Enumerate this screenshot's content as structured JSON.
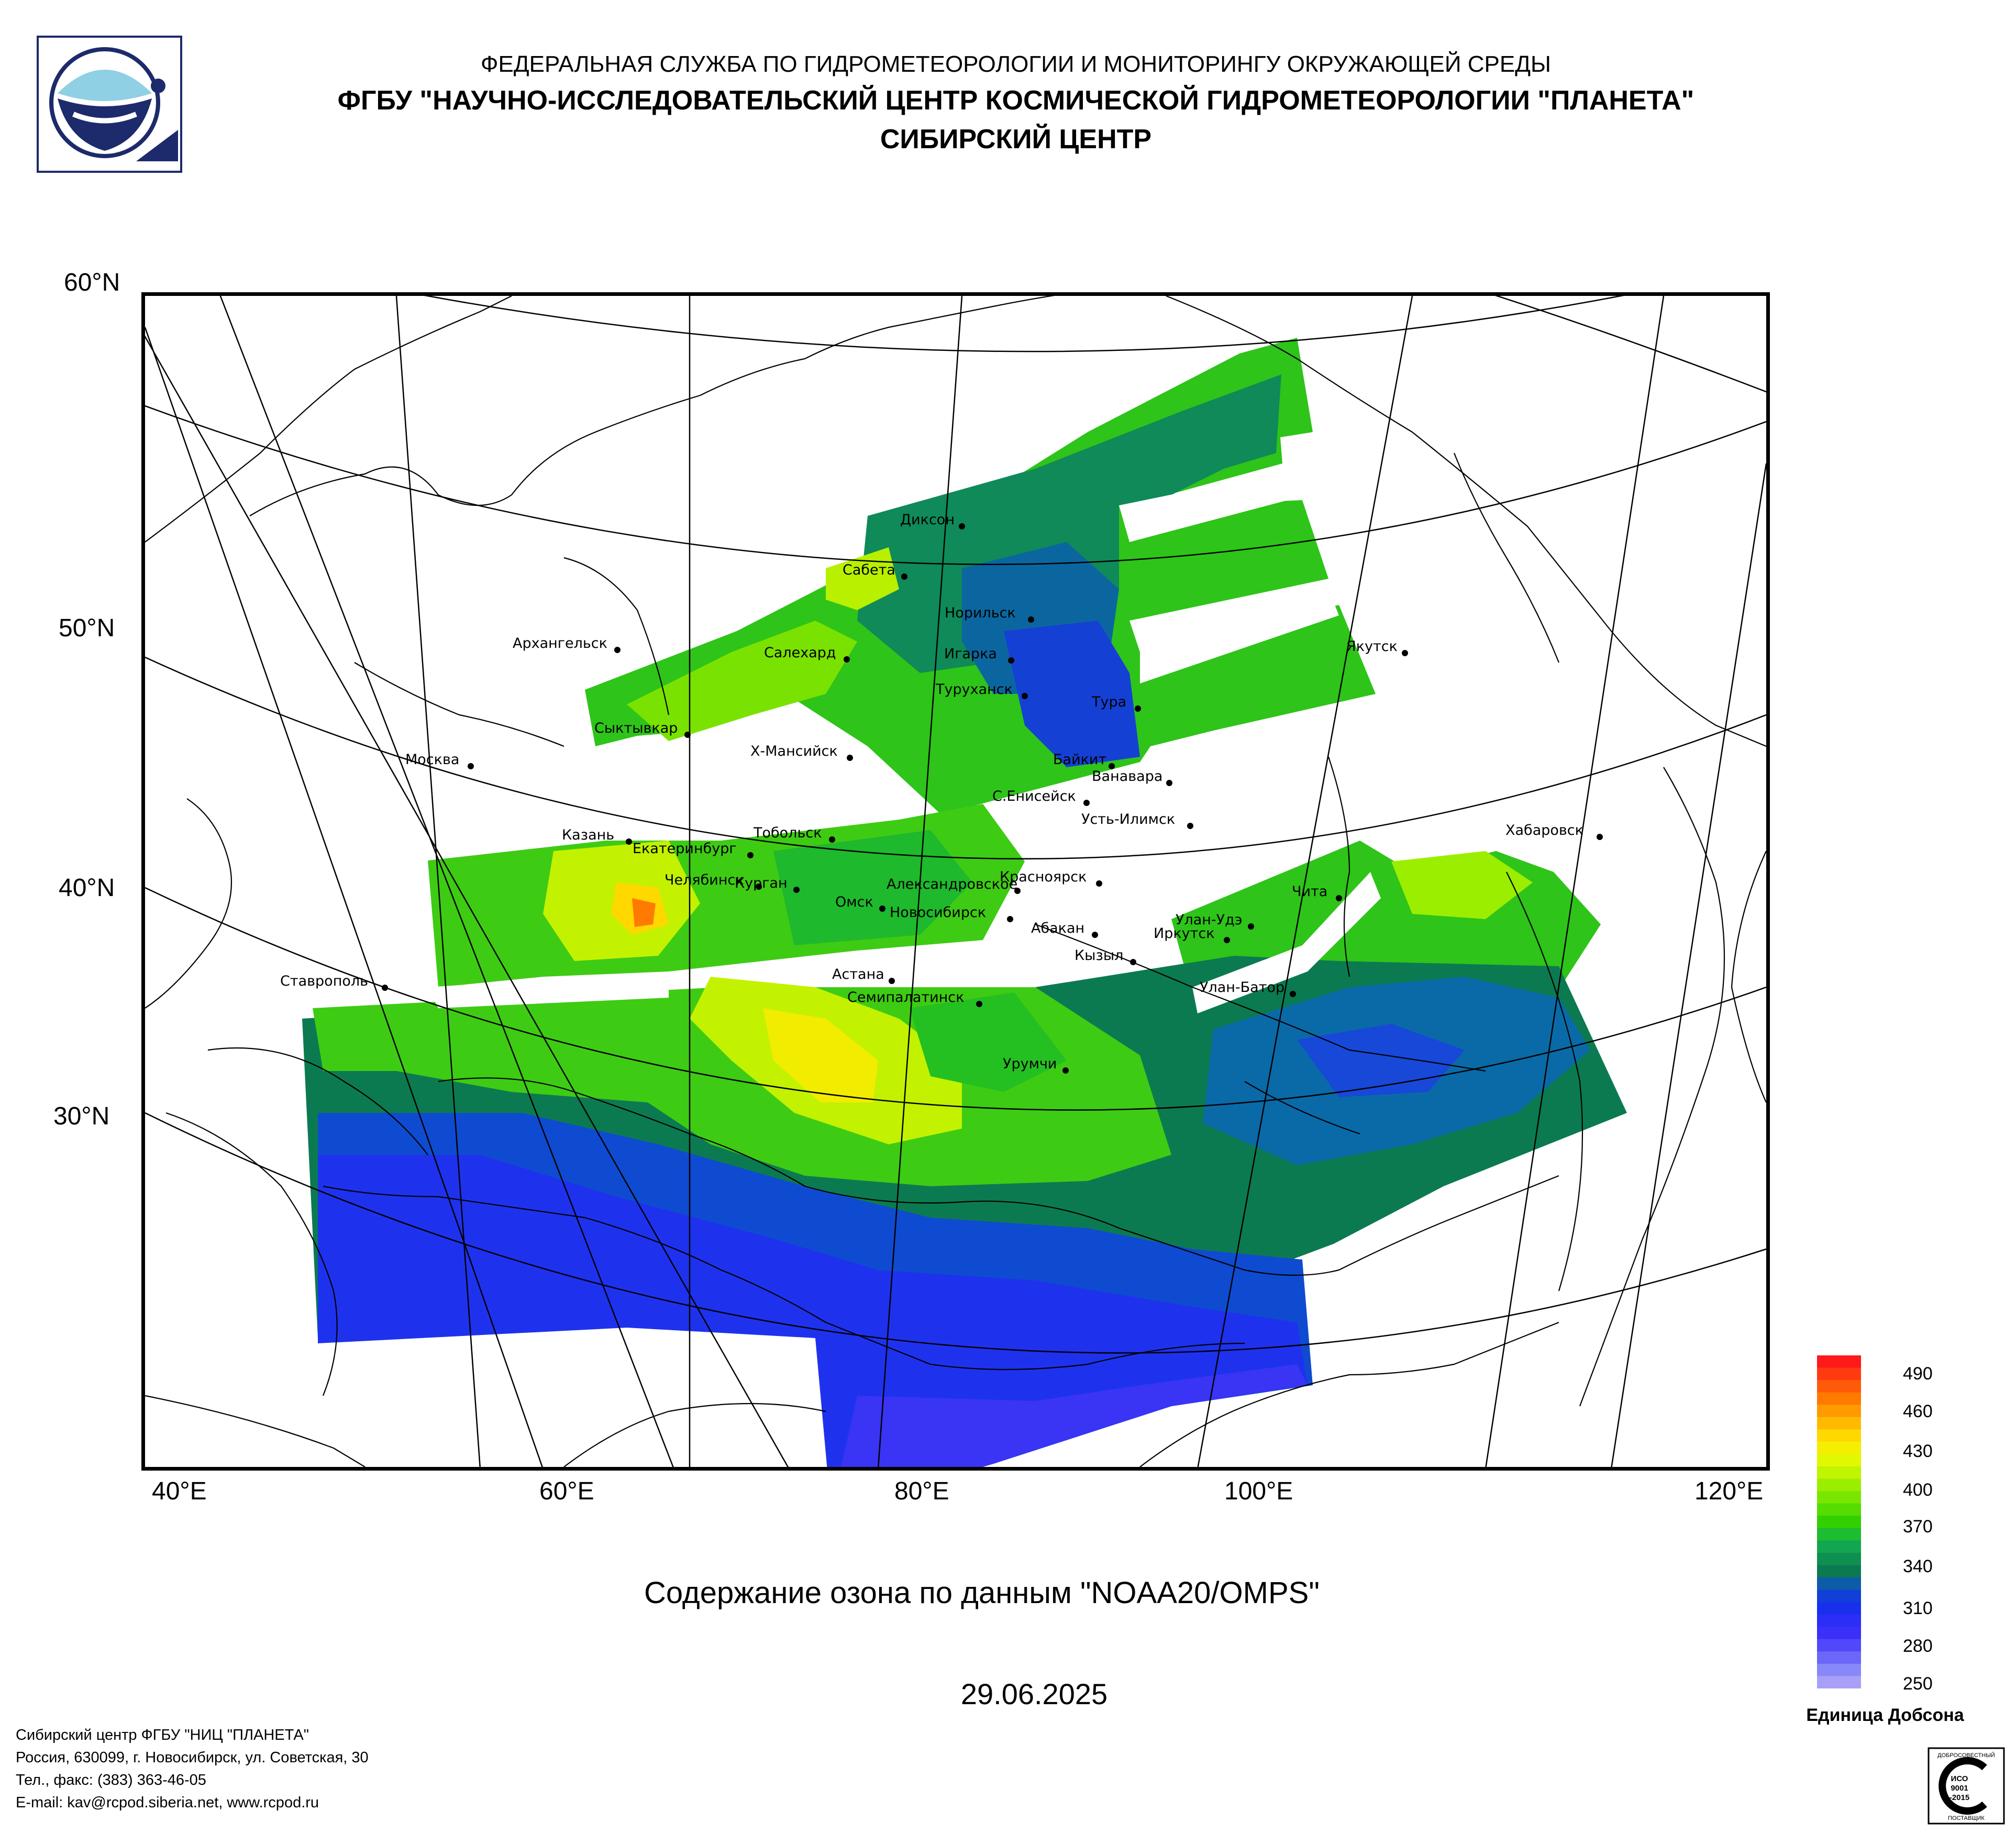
{
  "header": {
    "line1": "ФЕДЕРАЛЬНАЯ СЛУЖБА ПО ГИДРОМЕТЕОРОЛОГИИ И МОНИТОРИНГУ ОКРУЖАЮЩЕЙ СРЕДЫ",
    "line2": "ФГБУ \"НАУЧНО-ИССЛЕДОВАТЕЛЬСКИЙ ЦЕНТР КОСМИЧЕСКОЙ ГИДРОМЕТЕОРОЛОГИИ \"ПЛАНЕТА\"",
    "line3": "СИБИРСКИЙ ЦЕНТР"
  },
  "map": {
    "lat_labels": [
      "60°N",
      "50°N",
      "40°N",
      "30°N"
    ],
    "lon_labels": [
      "40°E",
      "60°E",
      "80°E",
      "100°E",
      "120°E"
    ],
    "cities": [
      "Диксон",
      "Сабета",
      "Норильск",
      "Игарка",
      "Салехард",
      "Туруханск",
      "Тура",
      "Якутск",
      "Архангельск",
      "Сыктывкар",
      "Москва",
      "Х-Мансийск",
      "Байкит",
      "Ванавара",
      "С.Енисейск",
      "Усть-Илимск",
      "Хабаровск",
      "Казань",
      "Екатеринбург",
      "Тобольск",
      "Челябинск",
      "Курган",
      "Красноярск",
      "Александровское",
      "Омск",
      "Новосибирск",
      "Абакан",
      "Улан-Удэ",
      "Чита",
      "Иркутск",
      "Астана",
      "Кызыл",
      "Ставрополь",
      "Семипалатинск",
      "Улан-Батор",
      "Урумчи"
    ]
  },
  "caption": "Содержание озона по данным \"NOAA20/OMPS\"",
  "date": "29.06.2025",
  "legend": {
    "ticks": [
      "490",
      "460",
      "430",
      "400",
      "370",
      "340",
      "310",
      "280",
      "250"
    ],
    "unit": "Единица Добсона",
    "colors": [
      "#ff1a1a",
      "#ff3a10",
      "#ff5a08",
      "#ff7a00",
      "#ff9a00",
      "#ffba00",
      "#ffd800",
      "#f6ee00",
      "#e0f800",
      "#c0f400",
      "#9cee00",
      "#78e600",
      "#55dc00",
      "#33d000",
      "#1cbd30",
      "#13a650",
      "#0f9050",
      "#0c7a50",
      "#0c5caa",
      "#1040d8",
      "#1830ee",
      "#2a2ef6",
      "#3a30f8",
      "#5048fa",
      "#6c66fa",
      "#8888f8",
      "#a8a0f8"
    ]
  },
  "footer": {
    "line1": "Сибирский центр ФГБУ \"НИЦ \"ПЛАНЕТА\"",
    "line2": "Россия, 630099, г. Новосибирск, ул. Советская, 30",
    "line3": "Тел., факс: (383) 363-46-05",
    "line4": "E-mail: kav@rcpod.siberia.net, www.rcpod.ru"
  },
  "certificate": {
    "top": "ДОБРОСОВЕСТНЫЙ",
    "mid1": "ИСО",
    "mid2": "9001",
    "mid3": "-2015",
    "bottom": "ПОСТАВЩИК"
  }
}
